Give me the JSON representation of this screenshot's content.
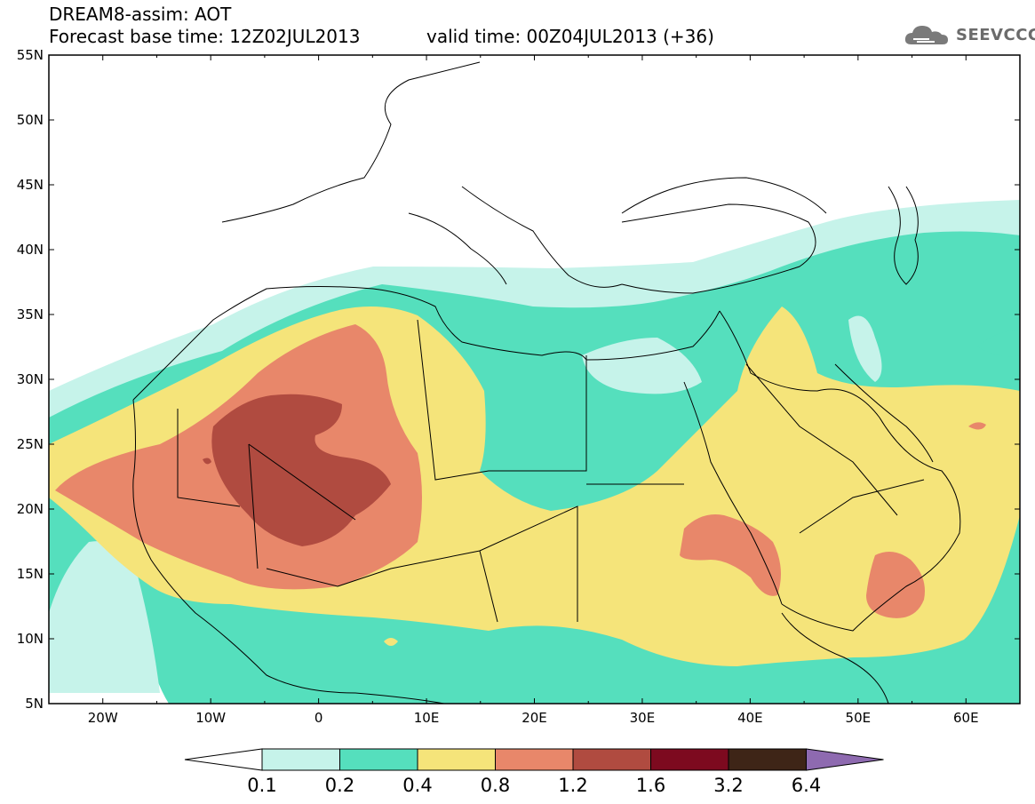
{
  "header": {
    "line1": "DREAM8-assim: AOT",
    "base_time": "Forecast base time: 12Z02JUL2013",
    "valid_time": "valid time: 00Z04JUL2013 (+36)",
    "logo_text": "SEEVCCC",
    "logo_icon": "cloud-icon"
  },
  "map": {
    "lat_ticks": [
      "55N",
      "50N",
      "45N",
      "40N",
      "35N",
      "30N",
      "25N",
      "20N",
      "15N",
      "10N",
      "5N"
    ],
    "lon_ticks": [
      "20W",
      "10W",
      "0",
      "10E",
      "20E",
      "30E",
      "40E",
      "50E",
      "60E"
    ],
    "extent": {
      "lon_min": -25,
      "lon_max": 65,
      "lat_min": 5,
      "lat_max": 55
    }
  },
  "legend": {
    "labels": [
      "0.1",
      "0.2",
      "0.4",
      "0.8",
      "1.2",
      "1.6",
      "3.2",
      "6.4"
    ],
    "colors": [
      "#ffffff",
      "#c6f3ea",
      "#55dfbd",
      "#f5e47a",
      "#e8876a",
      "#b04b40",
      "#7d0a1f",
      "#3e2517",
      "#8e6ab0"
    ]
  }
}
